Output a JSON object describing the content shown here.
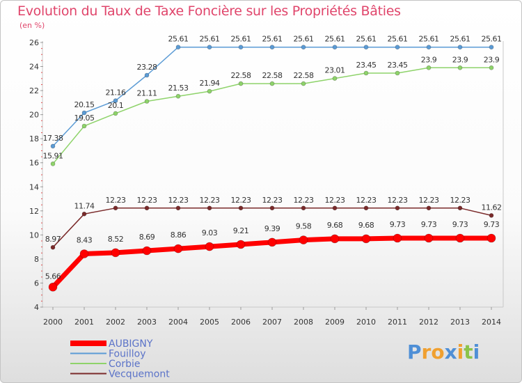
{
  "chart_data": {
    "type": "line",
    "title": "Evolution du Taux de Taxe Foncière sur les Propriétés Bâties",
    "unit_label": "(en %)",
    "xlabel": "",
    "ylabel": "",
    "ylim": [
      4,
      26
    ],
    "y_ticks": [
      4,
      6,
      8,
      10,
      12,
      14,
      16,
      18,
      20,
      22,
      24,
      26
    ],
    "grid": false,
    "legend_position": "bottom-left",
    "categories": [
      "2000",
      "2001",
      "2002",
      "2003",
      "2004",
      "2005",
      "2006",
      "2007",
      "2008",
      "2009",
      "2010",
      "2011",
      "2012",
      "2013",
      "2014"
    ],
    "series": [
      {
        "name": "Vecquemont",
        "color": "#7a2a2a",
        "values": [
          8.97,
          11.74,
          12.23,
          12.23,
          12.23,
          12.23,
          12.23,
          12.23,
          12.23,
          12.23,
          12.23,
          12.23,
          12.23,
          12.23,
          11.62
        ],
        "labels": [
          "8.97",
          "11.74",
          "12.23",
          "12.23",
          "12.23",
          "12.23",
          "12.23",
          "12.23",
          "12.23",
          "12.23",
          "12.23",
          "12.23",
          "12.23",
          "12.23",
          "11.62"
        ]
      },
      {
        "name": "Corbie",
        "color": "#8ed36a",
        "values": [
          15.91,
          19.05,
          20.1,
          21.11,
          21.53,
          21.94,
          22.58,
          22.58,
          22.58,
          23.01,
          23.45,
          23.45,
          23.9,
          23.9,
          23.9
        ],
        "labels": [
          "15.91",
          "19.05",
          "20.1",
          "21.11",
          "21.53",
          "21.94",
          "22.58",
          "22.58",
          "22.58",
          "23.01",
          "23.45",
          "23.45",
          "23.9",
          "23.9",
          "23.9"
        ]
      },
      {
        "name": "Fouilloy",
        "color": "#5b9bd5",
        "values": [
          17.38,
          20.15,
          21.16,
          23.28,
          25.61,
          25.61,
          25.61,
          25.61,
          25.61,
          25.61,
          25.61,
          25.61,
          25.61,
          25.61,
          25.61
        ],
        "labels": [
          "17.38",
          "20.15",
          "21.16",
          "23.28",
          "25.61",
          "25.61",
          "25.61",
          "25.61",
          "25.61",
          "25.61",
          "25.61",
          "25.61",
          "25.61",
          "25.61",
          "25.61"
        ]
      },
      {
        "name": "AUBIGNY",
        "color": "#ff0000",
        "values": [
          5.66,
          8.43,
          8.52,
          8.69,
          8.86,
          9.03,
          9.21,
          9.39,
          9.58,
          9.68,
          9.68,
          9.73,
          9.73,
          9.73,
          9.73
        ],
        "labels": [
          "5.66",
          "8.43",
          "8.52",
          "8.69",
          "8.86",
          "9.03",
          "9.21",
          "9.39",
          "9.58",
          "9.68",
          "9.68",
          "9.73",
          "9.73",
          "9.73",
          "9.73"
        ]
      }
    ],
    "legend": [
      "AUBIGNY",
      "Fouilloy",
      "Corbie",
      "Vecquemont"
    ]
  },
  "legend_text_color": "#5b73c8",
  "logo": {
    "letters": [
      "P",
      "r",
      "o",
      "x",
      "i",
      "t",
      "i"
    ],
    "colors": [
      "#4f8fd6",
      "#f0a030",
      "#f0a030",
      "#4f8fd6",
      "#f0a030",
      "#8bc34a",
      "#4f8fd6"
    ]
  }
}
